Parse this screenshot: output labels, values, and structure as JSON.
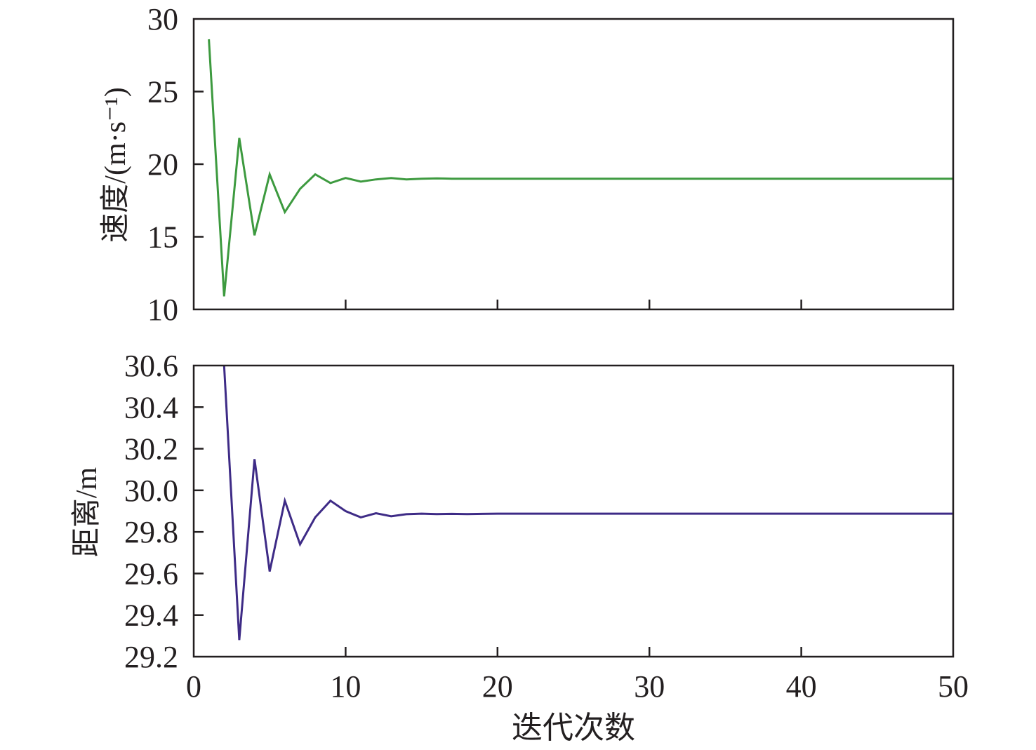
{
  "chart_data": [
    {
      "type": "line",
      "ylabel": "速度/(m·s⁻¹)",
      "xlabel": "",
      "xlim": [
        0,
        50
      ],
      "ylim": [
        10,
        30
      ],
      "xticks": [
        0,
        10,
        20,
        30,
        40,
        50
      ],
      "yticks": [
        10,
        15,
        20,
        25,
        30
      ],
      "ytick_labels": [
        "10",
        "15",
        "20",
        "25",
        "30"
      ],
      "show_xtick_labels": false,
      "grid": false,
      "color": "#3d9a3f",
      "x": [
        1,
        2,
        3,
        4,
        5,
        6,
        7,
        8,
        9,
        10,
        11,
        12,
        13,
        14,
        15,
        16,
        17,
        18,
        19,
        20,
        25,
        30,
        35,
        40,
        45,
        50
      ],
      "values": [
        28.6,
        10.9,
        21.8,
        15.1,
        19.3,
        16.7,
        18.3,
        19.3,
        18.7,
        19.05,
        18.8,
        18.95,
        19.05,
        18.95,
        19.0,
        19.02,
        19.0,
        19.0,
        19.0,
        19.0,
        19.0,
        19.0,
        19.0,
        19.0,
        19.0,
        19.0
      ]
    },
    {
      "type": "line",
      "ylabel": "距离/m",
      "xlabel": "迭代次数",
      "xlim": [
        0,
        50
      ],
      "ylim": [
        29.2,
        30.6
      ],
      "xticks": [
        0,
        10,
        20,
        30,
        40,
        50
      ],
      "xtick_labels": [
        "0",
        "10",
        "20",
        "30",
        "40",
        "50"
      ],
      "yticks": [
        29.2,
        29.4,
        29.6,
        29.8,
        30.0,
        30.2,
        30.4,
        30.6
      ],
      "ytick_labels": [
        "29.2",
        "29.4",
        "29.6",
        "29.8",
        "30.0",
        "30.2",
        "30.4",
        "30.6"
      ],
      "grid": false,
      "color": "#3e2b86",
      "x": [
        2,
        3,
        4,
        5,
        6,
        7,
        8,
        9,
        10,
        11,
        12,
        13,
        14,
        15,
        16,
        17,
        18,
        19,
        20,
        25,
        30,
        35,
        40,
        45,
        50
      ],
      "values": [
        30.6,
        29.28,
        30.15,
        29.61,
        29.95,
        29.74,
        29.87,
        29.95,
        29.9,
        29.87,
        29.89,
        29.875,
        29.885,
        29.888,
        29.886,
        29.887,
        29.886,
        29.887,
        29.888,
        29.888,
        29.888,
        29.888,
        29.888,
        29.888,
        29.888
      ]
    }
  ]
}
